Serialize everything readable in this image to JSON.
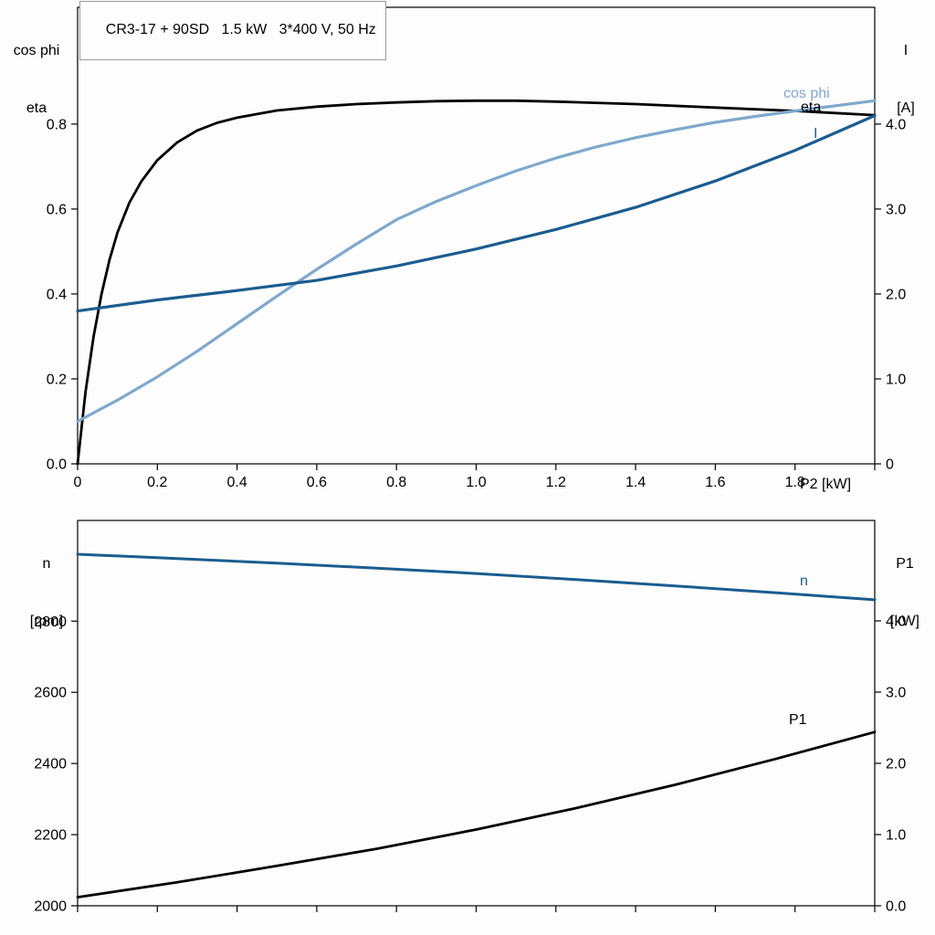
{
  "colors": {
    "black": "#000000",
    "dark_blue": "#1b5c8f",
    "light_blue": "#7fa8cd",
    "frame": "#000000"
  },
  "chart_data": [
    {
      "type": "line",
      "title": "CR3-17 + 90SD   1.5 kW   3*400 V, 50 Hz",
      "x_axis": {
        "title": "P2 [kW]",
        "range": [
          0,
          2.0
        ],
        "ticks": [
          {
            "v": 0,
            "label": "0"
          },
          {
            "v": 0.2,
            "label": "0.2"
          },
          {
            "v": 0.4,
            "label": "0.4"
          },
          {
            "v": 0.6,
            "label": "0.6"
          },
          {
            "v": 0.8,
            "label": "0.8"
          },
          {
            "v": 1.0,
            "label": "1.0"
          },
          {
            "v": 1.2,
            "label": "1.2"
          },
          {
            "v": 1.4,
            "label": "1.4"
          },
          {
            "v": 1.6,
            "label": "1.6"
          },
          {
            "v": 1.8,
            "label": "1.8"
          },
          {
            "v": 2.0
          }
        ]
      },
      "y_left": {
        "title_lines": [
          "cos phi",
          "eta"
        ],
        "range": [
          0,
          1.075
        ],
        "ticks": [
          {
            "v": 0,
            "label": "0.0"
          },
          {
            "v": 0.2,
            "label": "0.2"
          },
          {
            "v": 0.4,
            "label": "0.4"
          },
          {
            "v": 0.6,
            "label": "0.6"
          },
          {
            "v": 0.8,
            "label": "0.8"
          }
        ]
      },
      "y_right": {
        "title_lines": [
          "I",
          "[A]"
        ],
        "range": [
          0,
          5.375
        ],
        "ticks": [
          {
            "v": 0,
            "label": "0"
          },
          {
            "v": 1,
            "label": "1.0"
          },
          {
            "v": 2,
            "label": "2.0"
          },
          {
            "v": 3,
            "label": "3.0"
          },
          {
            "v": 4,
            "label": "4.0"
          }
        ]
      },
      "series": [
        {
          "name": "eta",
          "axis": "left",
          "color": "#000000",
          "width": 2.8,
          "x": [
            0,
            0.02,
            0.04,
            0.06,
            0.08,
            0.1,
            0.13,
            0.16,
            0.2,
            0.25,
            0.3,
            0.35,
            0.4,
            0.5,
            0.6,
            0.7,
            0.8,
            0.9,
            1.0,
            1.1,
            1.2,
            1.4,
            1.6,
            1.8,
            2.0
          ],
          "y": [
            0,
            0.17,
            0.3,
            0.4,
            0.48,
            0.545,
            0.615,
            0.665,
            0.715,
            0.757,
            0.785,
            0.803,
            0.815,
            0.832,
            0.841,
            0.847,
            0.851,
            0.854,
            0.855,
            0.855,
            0.853,
            0.847,
            0.839,
            0.831,
            0.821
          ]
        },
        {
          "name": "cos phi",
          "axis": "left",
          "color": "#7fa8cd",
          "width": 3.2,
          "x": [
            0,
            0.1,
            0.2,
            0.3,
            0.4,
            0.5,
            0.6,
            0.7,
            0.8,
            0.9,
            1.0,
            1.1,
            1.2,
            1.3,
            1.4,
            1.5,
            1.6,
            1.7,
            1.8,
            1.9,
            2.0
          ],
          "y": [
            0.1,
            0.15,
            0.205,
            0.265,
            0.33,
            0.395,
            0.458,
            0.518,
            0.575,
            0.618,
            0.655,
            0.69,
            0.72,
            0.746,
            0.768,
            0.787,
            0.804,
            0.818,
            0.831,
            0.843,
            0.855
          ]
        },
        {
          "name": "I",
          "axis": "right",
          "color": "#1b5c8f",
          "width": 3.2,
          "x": [
            0,
            0.2,
            0.4,
            0.6,
            0.8,
            1.0,
            1.2,
            1.4,
            1.6,
            1.8,
            2.0
          ],
          "y": [
            1.8,
            1.93,
            2.04,
            2.16,
            2.33,
            2.53,
            2.76,
            3.02,
            3.33,
            3.69,
            4.1
          ]
        }
      ]
    },
    {
      "type": "line",
      "x_axis": {
        "title": "",
        "range": [
          0,
          2.0
        ],
        "ticks": [
          {
            "v": 0
          },
          {
            "v": 0.2
          },
          {
            "v": 0.4
          },
          {
            "v": 0.6
          },
          {
            "v": 0.8
          },
          {
            "v": 1.0
          },
          {
            "v": 1.2
          },
          {
            "v": 1.4
          },
          {
            "v": 1.6
          },
          {
            "v": 1.8
          },
          {
            "v": 2.0
          }
        ]
      },
      "y_left": {
        "title_lines": [
          "n",
          "[rpm]"
        ],
        "range": [
          2000,
          3083
        ],
        "ticks": [
          {
            "v": 2000,
            "label": "2000"
          },
          {
            "v": 2200,
            "label": "2200"
          },
          {
            "v": 2400,
            "label": "2400"
          },
          {
            "v": 2600,
            "label": "2600"
          },
          {
            "v": 2800,
            "label": "2800"
          }
        ]
      },
      "y_right": {
        "title_lines": [
          "P1",
          "[kW]"
        ],
        "range": [
          0,
          5.41
        ],
        "ticks": [
          {
            "v": 0,
            "label": "0.0"
          },
          {
            "v": 1,
            "label": "1.0"
          },
          {
            "v": 2,
            "label": "2.0"
          },
          {
            "v": 3,
            "label": "3.0"
          },
          {
            "v": 4,
            "label": "4.0"
          }
        ]
      },
      "series": [
        {
          "name": "n",
          "axis": "left",
          "color": "#1b5c8f",
          "width": 3.0,
          "x": [
            0,
            0.25,
            0.5,
            0.75,
            1.0,
            1.25,
            1.5,
            1.75,
            2.0
          ],
          "y": [
            2988,
            2976,
            2963,
            2949,
            2934,
            2917,
            2899,
            2880,
            2860
          ]
        },
        {
          "name": "P1",
          "axis": "left_p1_uses_right",
          "color": "#000000",
          "width": 2.8,
          "x": [
            0,
            0.25,
            0.5,
            0.75,
            1.0,
            1.25,
            1.5,
            1.75,
            2.0
          ],
          "y": [
            0.12,
            0.33,
            0.56,
            0.8,
            1.07,
            1.37,
            1.7,
            2.06,
            2.44
          ]
        }
      ]
    }
  ]
}
